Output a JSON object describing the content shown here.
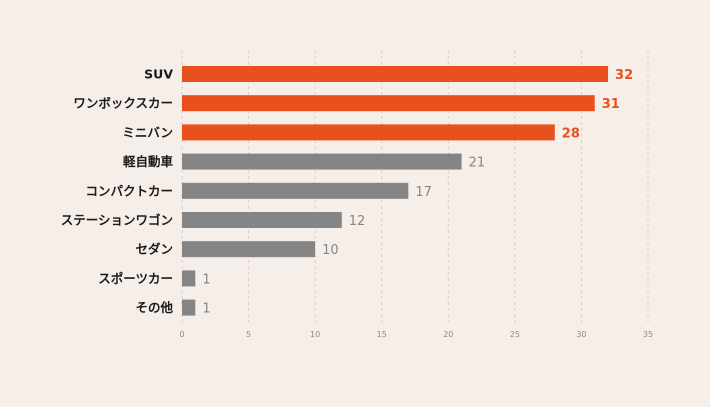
{
  "chart_data": {
    "type": "bar",
    "orientation": "horizontal",
    "categories": [
      "SUV",
      "ワンボックスカー",
      "ミニバン",
      "軽自動車",
      "コンパクトカー",
      "ステーションワゴン",
      "セダン",
      "スポーツカー",
      "その他"
    ],
    "values": [
      32,
      31,
      28,
      21,
      17,
      12,
      10,
      1,
      1
    ],
    "highlighted": [
      true,
      true,
      true,
      false,
      false,
      false,
      false,
      false,
      false
    ],
    "xlim": [
      0,
      35
    ],
    "xticks": [
      0,
      5,
      10,
      15,
      20,
      25,
      30,
      35
    ],
    "grid": "vertical dashed",
    "title": "",
    "xlabel": "",
    "ylabel": "",
    "colors": {
      "highlight": "#e8501d",
      "default": "#858585",
      "grid": "#d9cfca",
      "category_text": "#1a1a1a",
      "tick_text": "#8a8a8a",
      "background": "#f6eee9"
    }
  }
}
